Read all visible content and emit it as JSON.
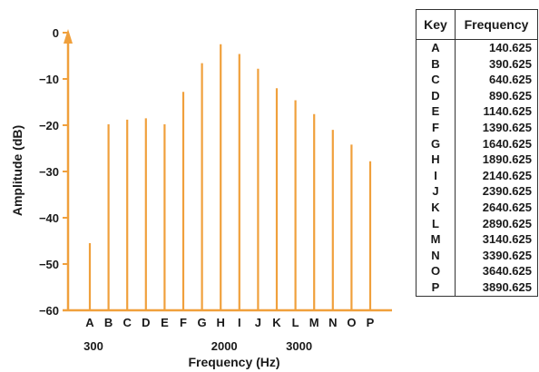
{
  "colors": {
    "bar": "#F0A03C",
    "axis": "#F0A03C",
    "text": "#1a1a1a"
  },
  "chart_data": {
    "type": "bar",
    "categories": [
      "A",
      "B",
      "C",
      "D",
      "E",
      "F",
      "G",
      "H",
      "I",
      "J",
      "K",
      "L",
      "M",
      "N",
      "O",
      "P"
    ],
    "values": [
      -45.5,
      -19.8,
      -18.8,
      -18.5,
      -19.8,
      -12.8,
      -6.6,
      -2.5,
      -4.6,
      -7.8,
      -12.0,
      -14.6,
      -17.6,
      -21.0,
      -24.2,
      -27.8
    ],
    "ylim": [
      -60,
      0
    ],
    "yticks": [
      0,
      -10,
      -20,
      -30,
      -40,
      -50,
      -60
    ],
    "ytick_labels": [
      "0",
      "−10",
      "−20",
      "−30",
      "−40",
      "−50",
      "−60"
    ],
    "freq_marks": [
      {
        "label": "300",
        "at": "A"
      },
      {
        "label": "2000",
        "at": "H"
      },
      {
        "label": "3000",
        "at": "L"
      }
    ],
    "xlabel": "Frequency (Hz)",
    "ylabel": "Amplitude (dB)",
    "grid": false,
    "legend": "none"
  },
  "key_table": {
    "headers": [
      "Key",
      "Frequency"
    ],
    "rows": [
      [
        "A",
        "140.625"
      ],
      [
        "B",
        "390.625"
      ],
      [
        "C",
        "640.625"
      ],
      [
        "D",
        "890.625"
      ],
      [
        "E",
        "1140.625"
      ],
      [
        "F",
        "1390.625"
      ],
      [
        "G",
        "1640.625"
      ],
      [
        "H",
        "1890.625"
      ],
      [
        "I",
        "2140.625"
      ],
      [
        "J",
        "2390.625"
      ],
      [
        "K",
        "2640.625"
      ],
      [
        "L",
        "2890.625"
      ],
      [
        "M",
        "3140.625"
      ],
      [
        "N",
        "3390.625"
      ],
      [
        "O",
        "3640.625"
      ],
      [
        "P",
        "3890.625"
      ]
    ]
  }
}
